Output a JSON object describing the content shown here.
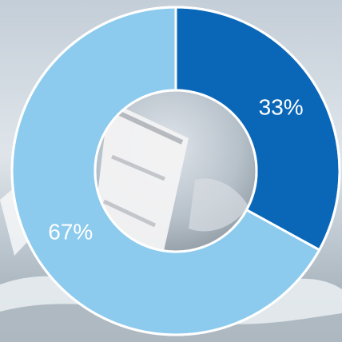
{
  "chart_data": {
    "type": "pie",
    "donut": true,
    "categories": [
      "",
      ""
    ],
    "values": [
      33,
      67
    ],
    "labels": [
      "33%",
      "67%"
    ],
    "colors": [
      "#0a67b8",
      "#8ccbee"
    ],
    "start": "top",
    "direction": "clockwise",
    "legend": "none",
    "grid": false
  },
  "background": {
    "description_colors": [
      "#c9d3dc",
      "#e6ebf0",
      "#7f8c96"
    ],
    "inner_photo": true
  }
}
